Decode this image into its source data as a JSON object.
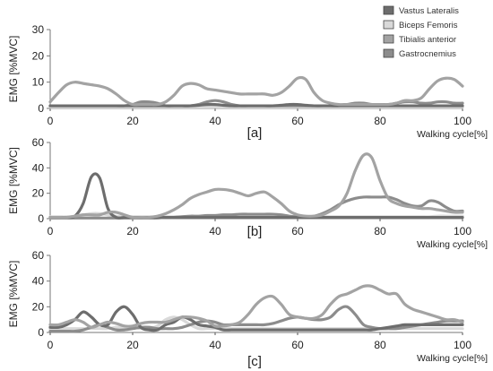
{
  "legend": {
    "placement": "top-right",
    "items": [
      {
        "label": "Vastus Lateralis",
        "color": "#6d6d6d"
      },
      {
        "label": "Biceps Femoris",
        "color": "#d9d9d9"
      },
      {
        "label": "Tibialis anterior",
        "color": "#a3a3a3"
      },
      {
        "label": "Gastrocnemius",
        "color": "#8c8c8c"
      }
    ]
  },
  "chart_data": [
    {
      "type": "line",
      "panel_label": "[a]",
      "ylabel": "EMG [%MVC]",
      "xlabel": "Walking cycle[%]",
      "xlim": [
        0,
        100
      ],
      "ylim": [
        0,
        30
      ],
      "xticks": [
        "0",
        "20",
        "40",
        "60",
        "80",
        "100"
      ],
      "yticks": [
        "0",
        "10",
        "20",
        "30"
      ],
      "grid": false,
      "x": [
        0,
        2,
        4,
        6,
        8,
        10,
        12,
        14,
        16,
        18,
        20,
        22,
        24,
        26,
        28,
        30,
        32,
        34,
        36,
        38,
        40,
        42,
        44,
        46,
        48,
        50,
        52,
        54,
        56,
        58,
        60,
        62,
        64,
        66,
        68,
        70,
        72,
        74,
        76,
        78,
        80,
        82,
        84,
        86,
        88,
        90,
        92,
        94,
        96,
        98,
        100
      ],
      "series": [
        {
          "name": "Vastus Lateralis",
          "values": [
            1,
            1,
            1,
            1,
            1,
            1,
            1,
            1,
            1,
            1,
            1,
            1,
            1,
            1,
            1,
            1,
            1,
            1,
            1.2,
            1.5,
            1.5,
            1.2,
            1,
            1,
            1,
            1,
            1,
            1,
            1.2,
            1.5,
            1.5,
            1.2,
            1,
            1,
            1,
            1,
            1,
            1,
            1,
            1,
            1,
            1,
            1,
            1,
            1,
            1,
            1,
            1,
            1,
            1,
            1
          ]
        },
        {
          "name": "Biceps Femoris",
          "values": [
            0.5,
            0.5,
            0.5,
            0.5,
            0.5,
            0.5,
            0.5,
            0.5,
            0.5,
            0.5,
            0.5,
            0.5,
            0.5,
            0.5,
            0.5,
            0.5,
            0.5,
            0.5,
            0.5,
            0.5,
            0.5,
            0.5,
            0.5,
            0.5,
            0.5,
            0.5,
            0.5,
            0.5,
            0.5,
            0.5,
            0.5,
            0.5,
            0.5,
            0.5,
            0.5,
            0.5,
            0.5,
            0.5,
            0.5,
            0.5,
            0.5,
            0.5,
            0.5,
            0.5,
            0.5,
            0.5,
            0.5,
            0.5,
            0.5,
            0.5,
            0.5
          ]
        },
        {
          "name": "Tibialis anterior",
          "values": [
            2.5,
            6,
            9,
            10,
            9.5,
            9,
            8.5,
            7.5,
            5.5,
            3,
            1.5,
            1.5,
            1.5,
            1.5,
            2.5,
            5,
            8.5,
            9.5,
            9,
            7.5,
            7,
            6.5,
            6,
            5.5,
            5.5,
            5.5,
            5.5,
            5,
            6,
            8.5,
            11.5,
            11,
            6,
            3,
            2,
            1.5,
            1.5,
            1.5,
            1.5,
            1.5,
            1.5,
            1.5,
            2,
            3,
            3,
            4,
            7.5,
            10.5,
            11.5,
            11,
            8.5
          ]
        },
        {
          "name": "Gastrocnemius",
          "values": [
            1,
            1,
            1,
            1,
            1,
            1,
            1,
            1,
            1,
            1,
            1.5,
            2.5,
            2.5,
            2,
            1,
            1,
            1,
            1,
            1.5,
            2.5,
            3,
            2.5,
            1.5,
            1,
            1,
            1,
            1,
            1,
            1,
            1,
            1,
            1,
            1,
            1,
            1,
            1,
            1.5,
            2,
            2,
            1.5,
            1.5,
            1.5,
            2,
            2.5,
            2.5,
            2,
            2,
            2.5,
            2.5,
            2,
            2
          ]
        }
      ]
    },
    {
      "type": "line",
      "panel_label": "[b]",
      "ylabel": "EMG [%MVC]",
      "xlabel": "Walking cycle[%]",
      "xlim": [
        0,
        100
      ],
      "ylim": [
        0,
        60
      ],
      "xticks": [
        "0",
        "20",
        "40",
        "60",
        "80",
        "100"
      ],
      "yticks": [
        "0",
        "20",
        "40",
        "60"
      ],
      "grid": false,
      "x": [
        0,
        2,
        4,
        6,
        8,
        10,
        12,
        14,
        16,
        18,
        20,
        22,
        24,
        26,
        28,
        30,
        32,
        34,
        36,
        38,
        40,
        42,
        44,
        46,
        48,
        50,
        52,
        54,
        56,
        58,
        60,
        62,
        64,
        66,
        68,
        70,
        72,
        74,
        76,
        78,
        80,
        82,
        84,
        86,
        88,
        90,
        92,
        94,
        96,
        98,
        100
      ],
      "series": [
        {
          "name": "Vastus Lateralis",
          "values": [
            1,
            1,
            1,
            2,
            12,
            33,
            32,
            8,
            1,
            1,
            1,
            1,
            1,
            1,
            1,
            1,
            1,
            1,
            1,
            1,
            1,
            1,
            1,
            1,
            1,
            1,
            1,
            1,
            1,
            1,
            1,
            1,
            1,
            1,
            1,
            1,
            1,
            1,
            1,
            1,
            1,
            1,
            1,
            1,
            1,
            1,
            1,
            1,
            1,
            1,
            1
          ]
        },
        {
          "name": "Biceps Femoris",
          "values": [
            1.5,
            1.5,
            1.5,
            2,
            3,
            4,
            4,
            3,
            2,
            1.5,
            1.5,
            1.5,
            1.5,
            1.5,
            1.5,
            1.5,
            1.5,
            1.5,
            1.5,
            1.5,
            1.5,
            1.5,
            1.5,
            1.5,
            1.5,
            1.5,
            1.5,
            1.5,
            1.5,
            1.5,
            1.5,
            1.5,
            1.5,
            1.5,
            1.5,
            1.5,
            1.5,
            1.5,
            1.5,
            1.5,
            1.5,
            1.5,
            1.5,
            1.5,
            1.5,
            1.5,
            1.5,
            2,
            2,
            2,
            2
          ]
        },
        {
          "name": "Tibialis anterior",
          "values": [
            1,
            1,
            1,
            2,
            3,
            3,
            3,
            5,
            5,
            3,
            1,
            1,
            1,
            2,
            4,
            7,
            11,
            16,
            19,
            21,
            23,
            23,
            22,
            20,
            18,
            20,
            21,
            17,
            12,
            6,
            3,
            2,
            2,
            3,
            6,
            10,
            20,
            38,
            50,
            48,
            30,
            16,
            12,
            10,
            9,
            8,
            8,
            7,
            6,
            5,
            5
          ]
        },
        {
          "name": "Gastrocnemius",
          "values": [
            0.5,
            0.5,
            0.5,
            0.5,
            0.5,
            0.5,
            0.5,
            0.5,
            0.5,
            0.5,
            0.5,
            0.5,
            0.5,
            0.5,
            1,
            1,
            1.5,
            2,
            2,
            2.5,
            2.5,
            3,
            3,
            3.5,
            3.5,
            3.5,
            3.5,
            3.5,
            3,
            2,
            1.5,
            1.5,
            2,
            4,
            7,
            11,
            14,
            16,
            17,
            17,
            17,
            17,
            15,
            12,
            10,
            10,
            14,
            13,
            9,
            6,
            6
          ]
        }
      ]
    },
    {
      "type": "line",
      "panel_label": "[c]",
      "ylabel": "EMG [%MVC]",
      "xlabel": "Walking cycle[%]",
      "xlim": [
        0,
        100
      ],
      "ylim": [
        0,
        60
      ],
      "xticks": [
        "0",
        "20",
        "40",
        "60",
        "80",
        "100"
      ],
      "yticks": [
        "0",
        "20",
        "40",
        "60"
      ],
      "grid": false,
      "x": [
        0,
        2,
        4,
        6,
        8,
        10,
        12,
        14,
        16,
        18,
        20,
        22,
        24,
        26,
        28,
        30,
        32,
        34,
        36,
        38,
        40,
        42,
        44,
        46,
        48,
        50,
        52,
        54,
        56,
        58,
        60,
        62,
        64,
        66,
        68,
        70,
        72,
        74,
        76,
        78,
        80,
        82,
        84,
        86,
        88,
        90,
        92,
        94,
        96,
        98,
        100
      ],
      "series": [
        {
          "name": "Vastus Lateralis",
          "values": [
            4,
            4,
            6,
            10,
            16,
            12,
            6,
            6,
            16,
            20,
            14,
            4,
            2,
            2,
            6,
            8,
            12,
            10,
            6,
            5,
            4,
            2,
            2,
            2,
            2,
            2,
            2,
            2,
            2,
            2,
            2,
            2,
            2,
            2,
            2,
            2,
            2,
            2,
            2,
            2,
            3,
            4,
            5,
            6,
            6,
            6,
            6,
            6,
            6,
            6,
            6
          ]
        },
        {
          "name": "Biceps Femoris",
          "values": [
            3,
            3,
            3,
            3,
            3,
            3,
            3,
            3,
            4,
            4,
            4,
            3,
            3,
            5,
            10,
            12,
            10,
            6,
            3,
            3,
            3,
            3,
            3,
            3,
            3,
            3,
            3,
            3,
            3,
            3,
            3,
            3,
            3,
            3,
            3,
            3,
            3,
            3,
            3,
            3,
            3,
            3,
            3,
            3,
            3,
            3,
            3,
            3,
            3,
            3,
            3
          ]
        },
        {
          "name": "Tibialis anterior",
          "values": [
            6,
            6,
            8,
            10,
            8,
            4,
            6,
            8,
            7,
            5,
            5,
            7,
            8,
            8,
            8,
            10,
            12,
            12,
            11,
            9,
            5,
            5,
            6,
            8,
            14,
            22,
            27,
            28,
            22,
            14,
            12,
            11,
            11,
            14,
            22,
            28,
            30,
            33,
            36,
            36,
            33,
            30,
            30,
            22,
            18,
            16,
            14,
            12,
            10,
            10,
            8
          ]
        },
        {
          "name": "Gastrocnemius",
          "values": [
            1,
            1,
            1,
            1,
            2,
            4,
            6,
            4,
            2,
            2,
            3,
            4,
            4,
            3,
            3,
            3,
            4,
            6,
            8,
            9,
            8,
            6,
            6,
            6,
            6,
            6,
            6,
            7,
            9,
            11,
            12,
            11,
            10,
            10,
            12,
            18,
            20,
            14,
            6,
            4,
            3,
            3,
            3,
            4,
            5,
            6,
            7,
            8,
            9,
            9,
            9
          ]
        }
      ]
    }
  ]
}
